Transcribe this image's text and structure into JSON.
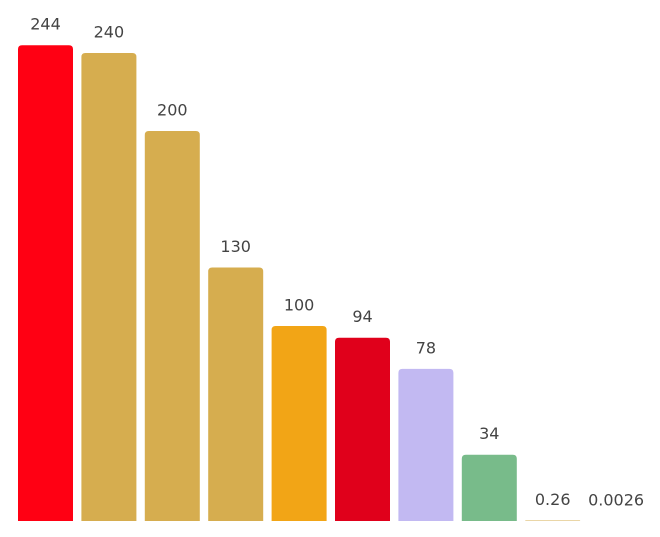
{
  "chart_data": {
    "type": "bar",
    "categories": [
      null,
      null,
      null,
      null,
      null,
      null,
      null,
      null,
      null,
      null
    ],
    "values": [
      244,
      240,
      200,
      130,
      100,
      94,
      78,
      34,
      0.26,
      0.0026
    ],
    "colors": [
      "#ff0013",
      "#d6ad4f",
      "#d6ad4f",
      "#d6ad4f",
      "#f2a516",
      "#e0001b",
      "#c2b9f2",
      "#78bb8a",
      "#d6ad4f",
      "#d6ad4f"
    ],
    "ylim": [
      0,
      250
    ]
  }
}
